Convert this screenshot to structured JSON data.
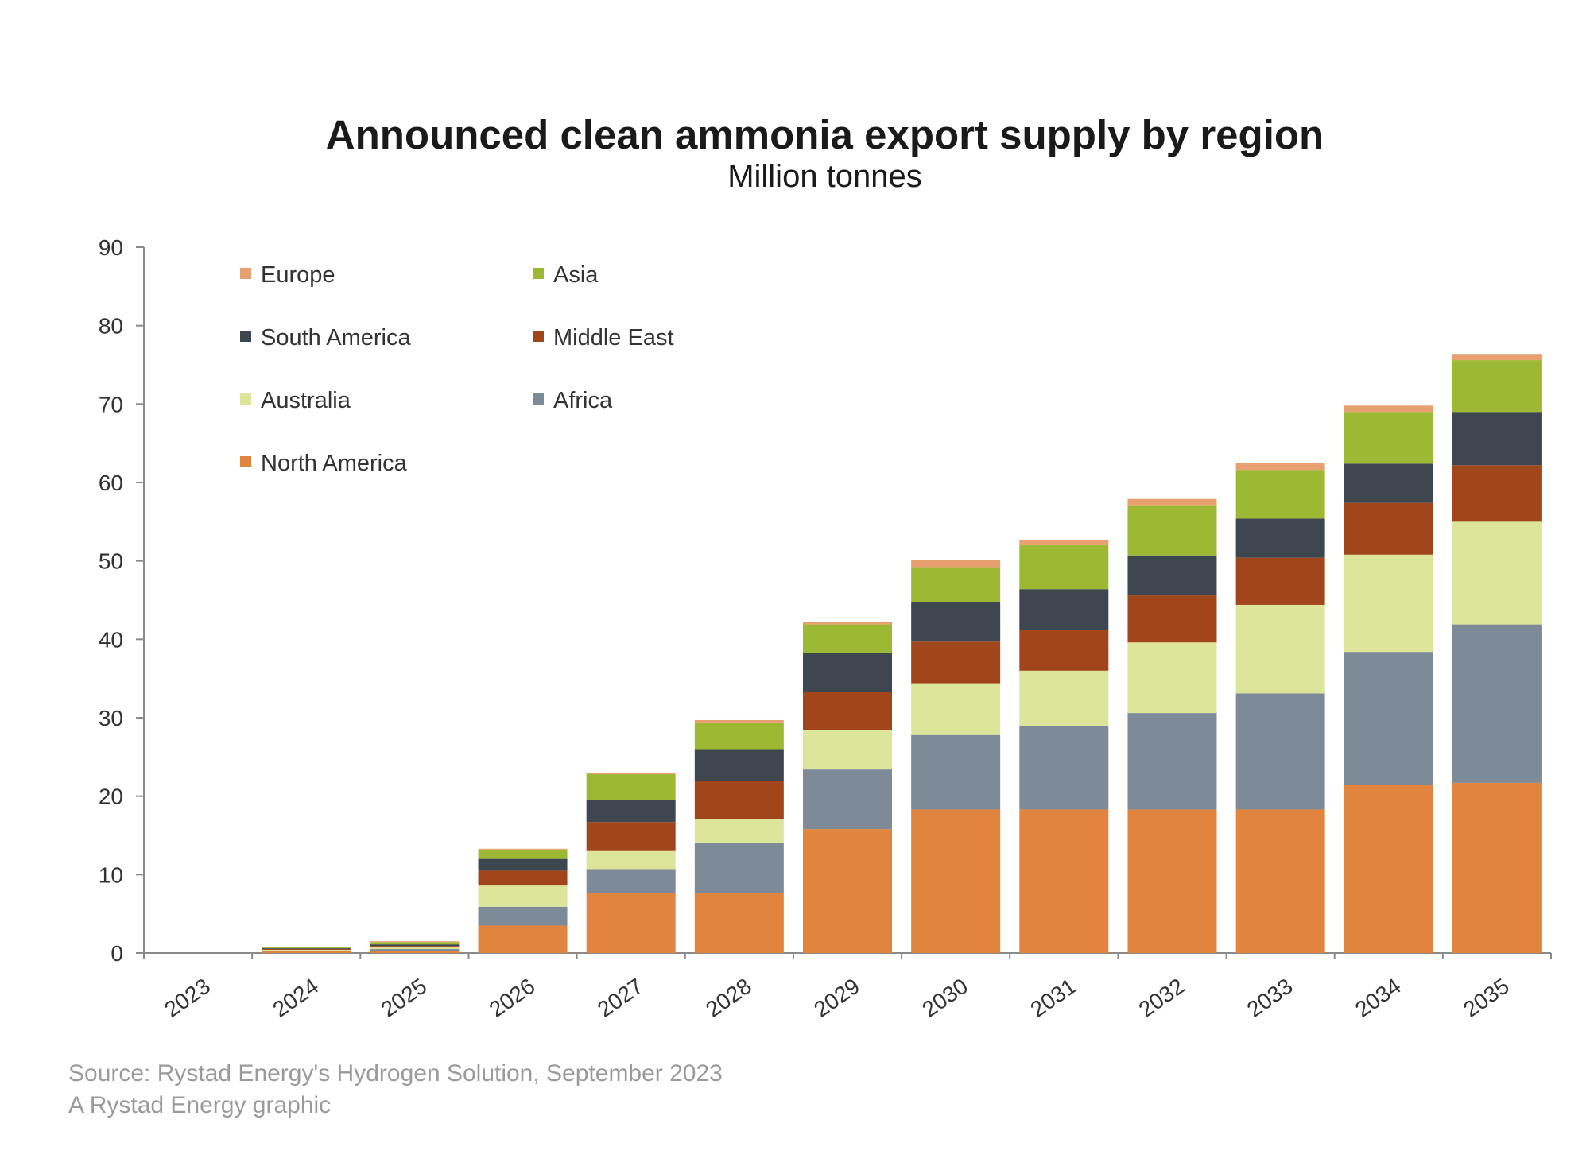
{
  "chart_data": {
    "type": "bar",
    "stacked": true,
    "title": "Announced clean ammonia export supply by region",
    "subtitle": "Million tonnes",
    "categories": [
      "2023",
      "2024",
      "2025",
      "2026",
      "2027",
      "2028",
      "2029",
      "2030",
      "2031",
      "2032",
      "2033",
      "2034",
      "2035"
    ],
    "ylim": [
      0,
      90
    ],
    "yticks": [
      0,
      10,
      20,
      30,
      40,
      50,
      60,
      70,
      80,
      90
    ],
    "grid": false,
    "legend": [
      {
        "name": "Europe",
        "color": "#E8A070"
      },
      {
        "name": "Asia",
        "color": "#9DB933"
      },
      {
        "name": "South America",
        "color": "#3E4650"
      },
      {
        "name": "Middle East",
        "color": "#A0461A"
      },
      {
        "name": "Australia",
        "color": "#DDE59A"
      },
      {
        "name": "Africa",
        "color": "#7D8A98"
      },
      {
        "name": "North America",
        "color": "#E0843E"
      }
    ],
    "series": [
      {
        "name": "North America",
        "color": "#E0843E",
        "values": [
          0,
          0.2,
          0.3,
          3.5,
          7.7,
          7.7,
          15.8,
          18.3,
          18.3,
          18.3,
          18.3,
          21.4,
          21.7
        ]
      },
      {
        "name": "Africa",
        "color": "#7D8A98",
        "values": [
          0,
          0.1,
          0.2,
          2.4,
          3,
          6.4,
          7.6,
          9.5,
          10.6,
          12.3,
          14.8,
          17,
          20.2
        ]
      },
      {
        "name": "Australia",
        "color": "#DDE59A",
        "values": [
          0,
          0.1,
          0.2,
          2.7,
          2.3,
          3,
          5,
          6.6,
          7.1,
          9,
          11.3,
          12.4,
          13.1
        ]
      },
      {
        "name": "Middle East",
        "color": "#A0461A",
        "values": [
          0,
          0.1,
          0.2,
          1.9,
          3.7,
          4.8,
          4.9,
          5.3,
          5.2,
          6,
          6,
          6.6,
          7.2
        ]
      },
      {
        "name": "South America",
        "color": "#3E4650",
        "values": [
          0,
          0.1,
          0.2,
          1.5,
          2.8,
          4.1,
          5,
          5,
          5.2,
          5.1,
          5,
          5,
          6.8
        ]
      },
      {
        "name": "Asia",
        "color": "#9DB933",
        "values": [
          0,
          0.1,
          0.3,
          1.2,
          3.3,
          3.4,
          3.6,
          4.5,
          5.6,
          6.4,
          6.2,
          6.6,
          6.6
        ]
      },
      {
        "name": "Europe",
        "color": "#E8A070",
        "values": [
          0,
          0.1,
          0.1,
          0.1,
          0.2,
          0.3,
          0.3,
          0.9,
          0.7,
          0.8,
          0.9,
          0.8,
          0.8
        ]
      }
    ]
  },
  "footer": {
    "source": "Source: Rystad Energy's Hydrogen Solution, September 2023",
    "credit": "A Rystad Energy graphic"
  }
}
